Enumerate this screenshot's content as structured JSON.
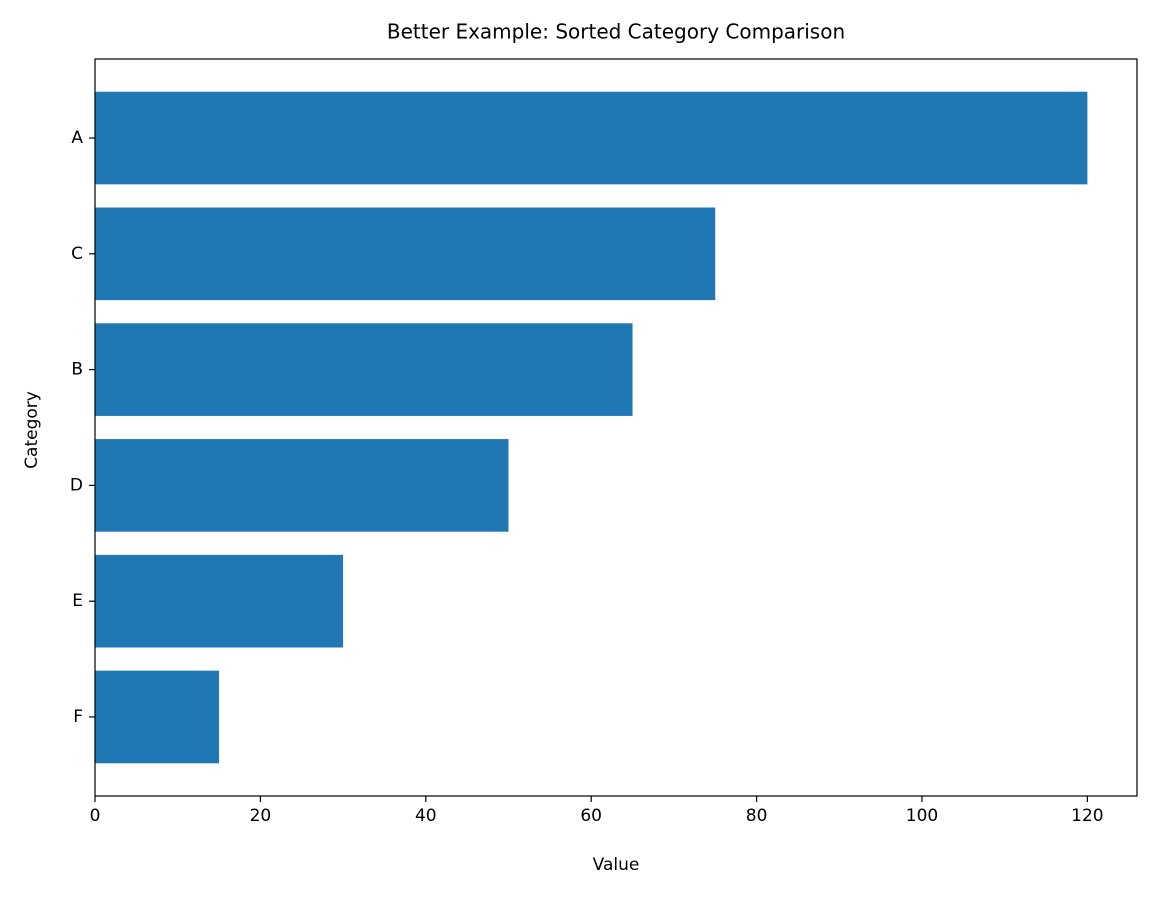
{
  "chart_data": {
    "type": "barh",
    "title": "Better Example: Sorted Category Comparison",
    "x_label": "Value",
    "y_label": "Category",
    "categories": [
      "A",
      "C",
      "B",
      "D",
      "E",
      "F"
    ],
    "values": [
      120,
      75,
      65,
      50,
      30,
      15
    ],
    "color": "#1f77b4",
    "xlim": [
      0,
      126
    ],
    "xticks": [
      0,
      20,
      40,
      60,
      80,
      100,
      120
    ],
    "grid": false
  }
}
